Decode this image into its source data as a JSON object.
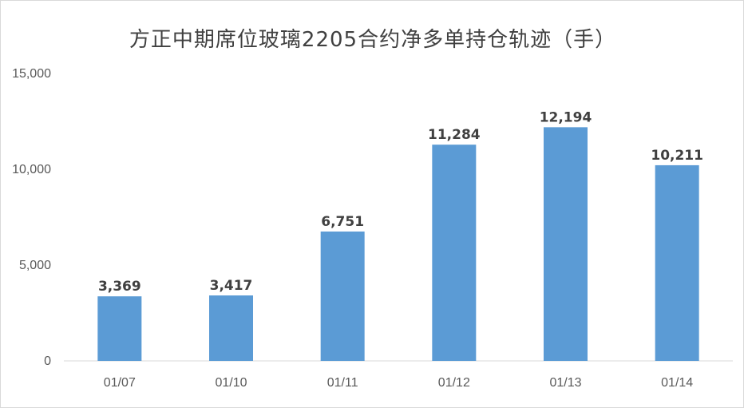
{
  "chart_data": {
    "type": "bar",
    "title": "方正中期席位玻璃2205合约净多单持仓轨迹（手）",
    "categories": [
      "01/07",
      "01/10",
      "01/11",
      "01/12",
      "01/13",
      "01/14"
    ],
    "values": [
      3369,
      3417,
      6751,
      11284,
      12194,
      10211
    ],
    "data_labels": [
      "3,369",
      "3,417",
      "6,751",
      "11,284",
      "12,194",
      "10,211"
    ],
    "yticks": [
      0,
      5000,
      10000,
      15000
    ],
    "ytick_labels": [
      "0",
      "5,000",
      "10,000",
      "15,000"
    ],
    "ylim": [
      0,
      15000
    ],
    "xlabel": "",
    "ylabel": "",
    "grid": false,
    "legend": "none",
    "bar_color": "#5b9bd5"
  }
}
